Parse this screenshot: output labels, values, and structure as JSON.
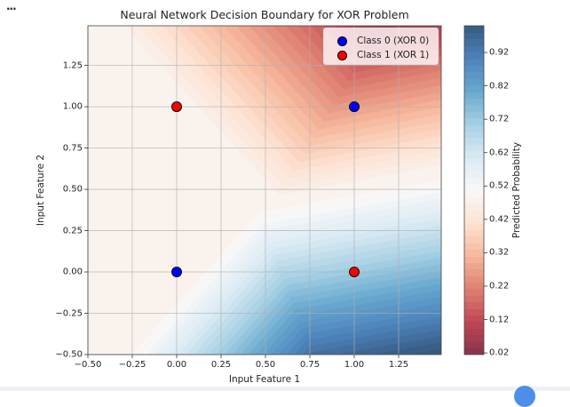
{
  "notebook": {
    "output_menu": "..."
  },
  "chart_data": {
    "type": "scatter",
    "background": "filled-contour",
    "title": "Neural Network Decision Boundary for XOR Problem",
    "xlabel": "Input Feature 1",
    "ylabel": "Input Feature 2",
    "xlim": [
      -0.5,
      1.49
    ],
    "ylim": [
      -0.5,
      1.49
    ],
    "xticks": [
      "−0.50",
      "−0.25",
      "0.00",
      "0.25",
      "0.50",
      "0.75",
      "1.00",
      "1.25"
    ],
    "xtick_values": [
      -0.5,
      -0.25,
      0,
      0.25,
      0.5,
      0.75,
      1.0,
      1.25
    ],
    "yticks": [
      "−0.50",
      "−0.25",
      "0.00",
      "0.25",
      "0.50",
      "0.75",
      "1.00",
      "1.25"
    ],
    "ytick_values": [
      -0.5,
      -0.25,
      0,
      0.25,
      0.5,
      0.75,
      1.0,
      1.25
    ],
    "grid": true,
    "legend_position": "top-right",
    "series": [
      {
        "name": "Class 0 (XOR 0)",
        "color": "#0000ff",
        "x": [
          0,
          1
        ],
        "y": [
          0,
          1
        ]
      },
      {
        "name": "Class 1 (XOR 1)",
        "color": "#ff0000",
        "x": [
          0,
          1
        ],
        "y": [
          1,
          0
        ]
      }
    ],
    "colorbar": {
      "label": "Predicted Probability",
      "colormap": "RdBu",
      "range": [
        0.015,
        1.0
      ],
      "ticks": [
        "0.02",
        "0.12",
        "0.22",
        "0.32",
        "0.42",
        "0.52",
        "0.62",
        "0.72",
        "0.82",
        "0.92"
      ],
      "tick_values": [
        0.02,
        0.12,
        0.22,
        0.32,
        0.42,
        0.52,
        0.62,
        0.72,
        0.82,
        0.92
      ]
    }
  }
}
